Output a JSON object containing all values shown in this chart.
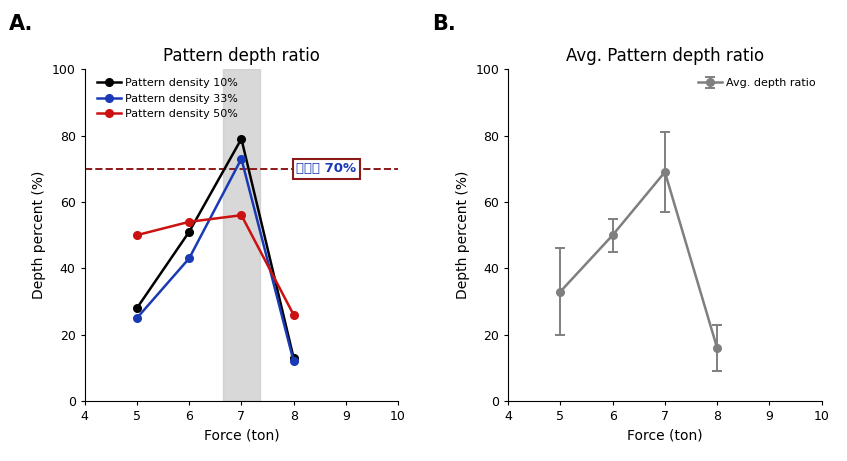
{
  "panel_A": {
    "title": "Pattern depth ratio",
    "xlabel": "Force (ton)",
    "ylabel": "Depth percent (%)",
    "xlim": [
      4,
      10
    ],
    "ylim": [
      0,
      100
    ],
    "xticks": [
      4,
      5,
      6,
      7,
      8,
      9,
      10
    ],
    "yticks": [
      0,
      20,
      40,
      60,
      80,
      100
    ],
    "series": [
      {
        "label": "Pattern density 10%",
        "color": "#000000",
        "x": [
          5,
          6,
          7,
          8
        ],
        "y": [
          28,
          51,
          79,
          13
        ]
      },
      {
        "label": "Pattern density 33%",
        "color": "#1a3ab5",
        "x": [
          5,
          6,
          7,
          8
        ],
        "y": [
          25,
          43,
          73,
          12
        ]
      },
      {
        "label": "Pattern density 50%",
        "color": "#cc1111",
        "x": [
          5,
          6,
          7,
          8
        ],
        "y": [
          50,
          54,
          56,
          26
        ]
      }
    ],
    "hline_y": 70,
    "hline_color": "#8b1a1a",
    "hline_label": "각인률 70%",
    "hline_label_color": "#1a3ab5",
    "hline_label_box_edgecolor": "#8b1a1a",
    "shading_x_lo": 6.65,
    "shading_x_hi": 7.35,
    "shading_color": "#c8c8c8",
    "shading_alpha": 0.7
  },
  "panel_B": {
    "title": "Avg. Pattern depth ratio",
    "xlabel": "Force (ton)",
    "ylabel": "Depth percent (%)",
    "xlim": [
      4,
      10
    ],
    "ylim": [
      0,
      100
    ],
    "xticks": [
      4,
      5,
      6,
      7,
      8,
      9,
      10
    ],
    "yticks": [
      0,
      20,
      40,
      60,
      80,
      100
    ],
    "series": [
      {
        "label": "Avg. depth ratio",
        "color": "#7f7f7f",
        "x": [
          5,
          6,
          7,
          8
        ],
        "y": [
          33,
          50,
          69,
          16
        ],
        "yerr": [
          13,
          5,
          12,
          7
        ]
      }
    ]
  },
  "label_A": "A.",
  "label_B": "B.",
  "label_fontsize": 15
}
